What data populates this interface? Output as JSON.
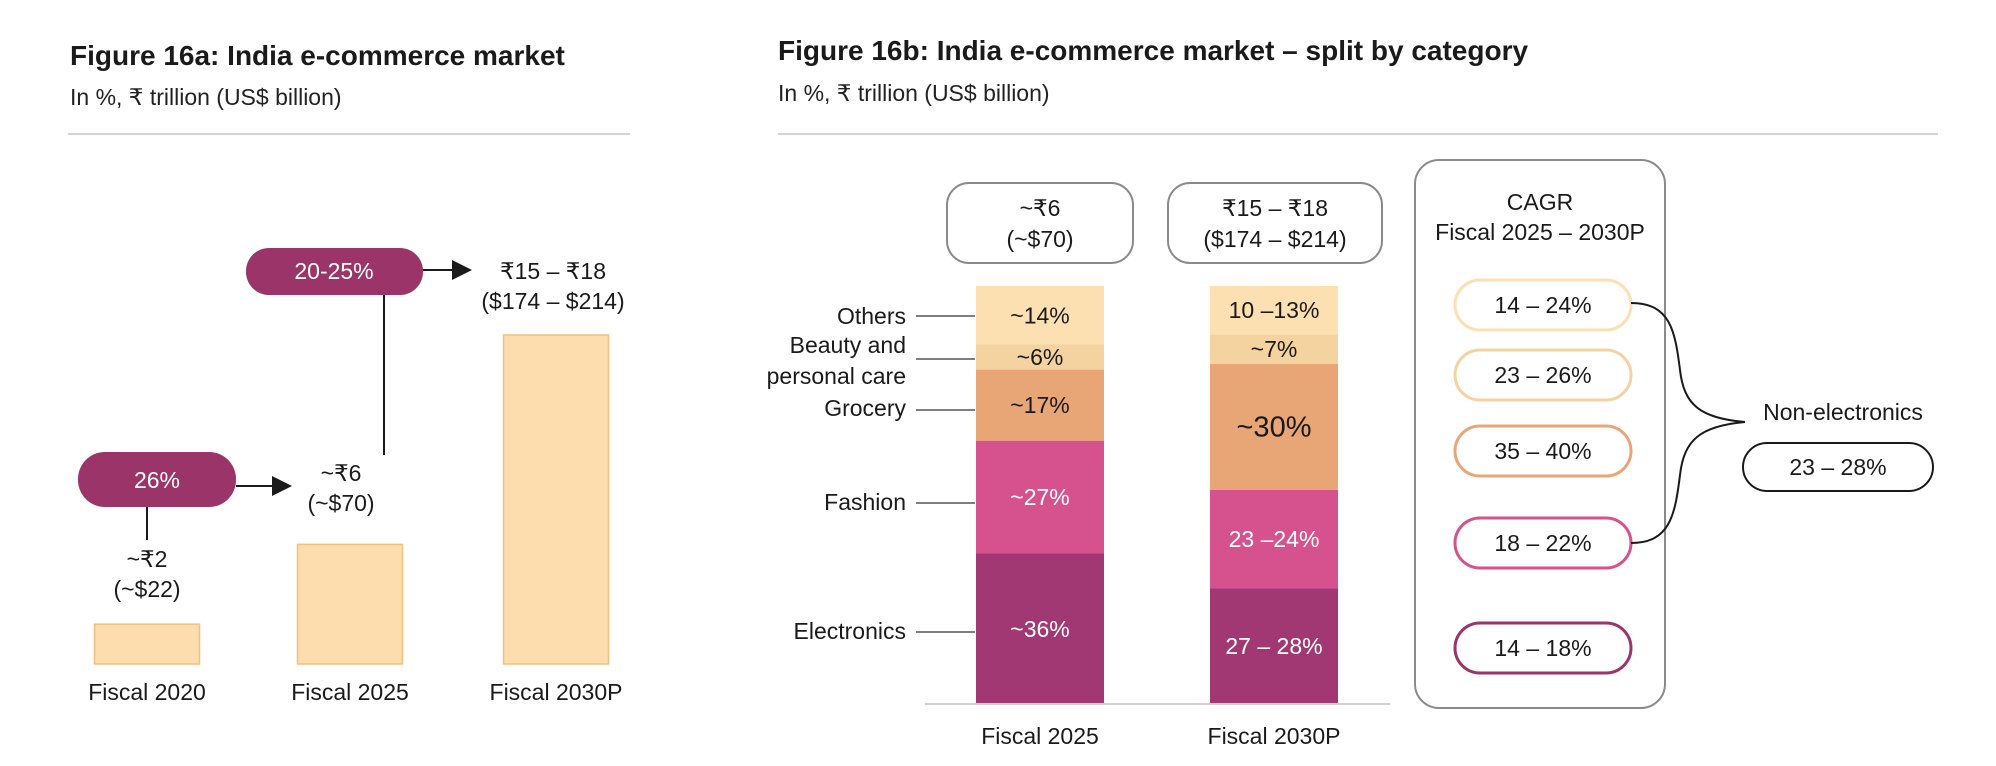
{
  "colors": {
    "bar": "#fddcad",
    "bar_stroke": "#f1c07f",
    "pill": "#9b3468",
    "electronics": "#a23873",
    "fashion": "#d6528f",
    "grocery": "#e8a677",
    "beauty": "#f5d3a1",
    "others": "#fde0b1"
  },
  "fig_a": {
    "title": "Figure 16a: India e-commerce market",
    "subtitle": "In %, ₹ trillion (US$ billion)",
    "growth_labels": [
      "26%",
      "20-25%"
    ],
    "bar_labels": [
      {
        "line1": "~₹2",
        "line2": "(~$22)"
      },
      {
        "line1": "~₹6",
        "line2": "(~$70)"
      },
      {
        "line1": "₹15 – ₹18",
        "line2": "($174 – $214)"
      }
    ]
  },
  "fig_b": {
    "title": "Figure 16b: India e-commerce market – split by category",
    "subtitle": "In %, ₹ trillion (US$ billion)",
    "totals": [
      {
        "line1": "~₹6",
        "line2": "(~$70)"
      },
      {
        "line1": "₹15 – ₹18",
        "line2": "($174 – $214)"
      }
    ],
    "category_labels": [
      "Others",
      "Beauty and",
      "personal care",
      "Grocery",
      "Fashion",
      "Electronics"
    ],
    "segment_labels": [
      [
        "~36%",
        "~27%",
        "~17%",
        "~6%",
        "~14%"
      ],
      [
        "27 – 28%",
        "23 –24%",
        "~30%",
        "~7%",
        "10 –13%"
      ]
    ],
    "cagr": {
      "title_line1": "CAGR",
      "title_line2": "Fiscal 2025 – 2030P",
      "items": [
        {
          "label": "14 – 24%",
          "color": "#fde0b1"
        },
        {
          "label": "23 – 26%",
          "color": "#f5d3a1"
        },
        {
          "label": "35 – 40%",
          "color": "#e8a677"
        },
        {
          "label": "18 – 22%",
          "color": "#d6528f"
        },
        {
          "label": "14 – 18%",
          "color": "#9b3468"
        }
      ],
      "non_electronics_label": "Non-electronics",
      "non_electronics_value": "23 – 28%"
    }
  },
  "chart_data": [
    {
      "type": "bar",
      "title": "Figure 16a: India e-commerce market",
      "subtitle": "In %, ₹ trillion (US$ billion)",
      "categories": [
        "Fiscal 2020",
        "Fiscal 2025",
        "Fiscal 2030P"
      ],
      "values": [
        2,
        6,
        16.5
      ],
      "value_ranges": [
        [
          2,
          2
        ],
        [
          6,
          6
        ],
        [
          15,
          18
        ]
      ],
      "usd_billion": [
        22,
        70,
        [
          174,
          214
        ]
      ],
      "growth_rates": [
        {
          "from": "Fiscal 2020",
          "to": "Fiscal 2025",
          "label": "26%"
        },
        {
          "from": "Fiscal 2025",
          "to": "Fiscal 2030P",
          "label": "20-25%"
        }
      ]
    },
    {
      "type": "bar",
      "stacked": true,
      "title": "Figure 16b: India e-commerce market – split by category",
      "subtitle": "In %, ₹ trillion (US$ billion)",
      "categories": [
        "Fiscal 2025",
        "Fiscal 2030P"
      ],
      "series": [
        {
          "name": "Electronics",
          "values": [
            36,
            27.5
          ],
          "labels": [
            "~36%",
            "27 – 28%"
          ],
          "cagr": "14 – 18%"
        },
        {
          "name": "Fashion",
          "values": [
            27,
            23.5
          ],
          "labels": [
            "~27%",
            "23 –24%"
          ],
          "cagr": "18 – 22%"
        },
        {
          "name": "Grocery",
          "values": [
            17,
            30
          ],
          "labels": [
            "~17%",
            "~30%"
          ],
          "cagr": "35 – 40%"
        },
        {
          "name": "Beauty and personal care",
          "values": [
            6,
            7
          ],
          "labels": [
            "~6%",
            "~7%"
          ],
          "cagr": "23 – 26%"
        },
        {
          "name": "Others",
          "values": [
            14,
            11.5
          ],
          "labels": [
            "~14%",
            "10 –13%"
          ],
          "cagr": "14 – 24%"
        }
      ],
      "non_electronics_cagr": "23 – 28%"
    }
  ]
}
